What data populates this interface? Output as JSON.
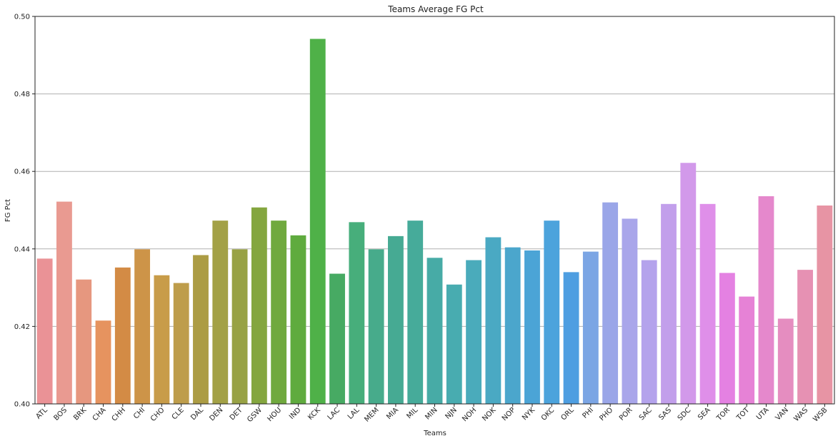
{
  "chart_data": {
    "type": "bar",
    "title": "Teams Average FG Pct",
    "xlabel": "Teams",
    "ylabel": "FG Pct",
    "ylim": [
      0.4,
      0.5
    ],
    "yticks": [
      "0.40",
      "0.42",
      "0.44",
      "0.46",
      "0.48",
      "0.50"
    ],
    "grid": "horizontal",
    "categories": [
      "ATL",
      "BOS",
      "BRK",
      "CHA",
      "CHH",
      "CHI",
      "CHO",
      "CLE",
      "DAL",
      "DEN",
      "DET",
      "GSW",
      "HOU",
      "IND",
      "KCK",
      "LAC",
      "LAL",
      "MEM",
      "MIA",
      "MIL",
      "MIN",
      "NJN",
      "NOH",
      "NOK",
      "NOP",
      "NYK",
      "OKC",
      "ORL",
      "PHI",
      "PHO",
      "POR",
      "SAC",
      "SAS",
      "SDC",
      "SEA",
      "TOR",
      "TOT",
      "UTA",
      "VAN",
      "WAS",
      "WSB"
    ],
    "values": [
      0.4375,
      0.4522,
      0.4321,
      0.4215,
      0.4352,
      0.4399,
      0.4332,
      0.4312,
      0.4384,
      0.4473,
      0.4399,
      0.4507,
      0.4473,
      0.4435,
      0.4942,
      0.4336,
      0.4469,
      0.4399,
      0.4433,
      0.4473,
      0.4377,
      0.4308,
      0.4371,
      0.443,
      0.4404,
      0.4396,
      0.4473,
      0.434,
      0.4393,
      0.452,
      0.4478,
      0.4371,
      0.4516,
      0.4622,
      0.4516,
      0.4338,
      0.4277,
      0.4536,
      0.422,
      0.4346,
      0.4512
    ],
    "colors": [
      "#ea9296",
      "#e99a91",
      "#e6977f",
      "#e6935f",
      "#d38b45",
      "#cd9448",
      "#c89c49",
      "#be9d4b",
      "#ac9c44",
      "#a3a146",
      "#98a245",
      "#84a63f",
      "#70a93e",
      "#5fab3e",
      "#4fb148",
      "#47aa63",
      "#47ae7b",
      "#47ab8b",
      "#46aa93",
      "#46ab9a",
      "#47aba6",
      "#48acb0",
      "#4aabbb",
      "#4aa9c3",
      "#4ba6cc",
      "#4ba4d6",
      "#4ca3dc",
      "#4e9ee1",
      "#7ba5e4",
      "#9aa6e8",
      "#a9a6ea",
      "#b4a3ec",
      "#c29feb",
      "#d299ea",
      "#df8fe9",
      "#e481e2",
      "#e682d6",
      "#e588cc",
      "#e58dc0",
      "#e691b3",
      "#e794a4"
    ]
  }
}
